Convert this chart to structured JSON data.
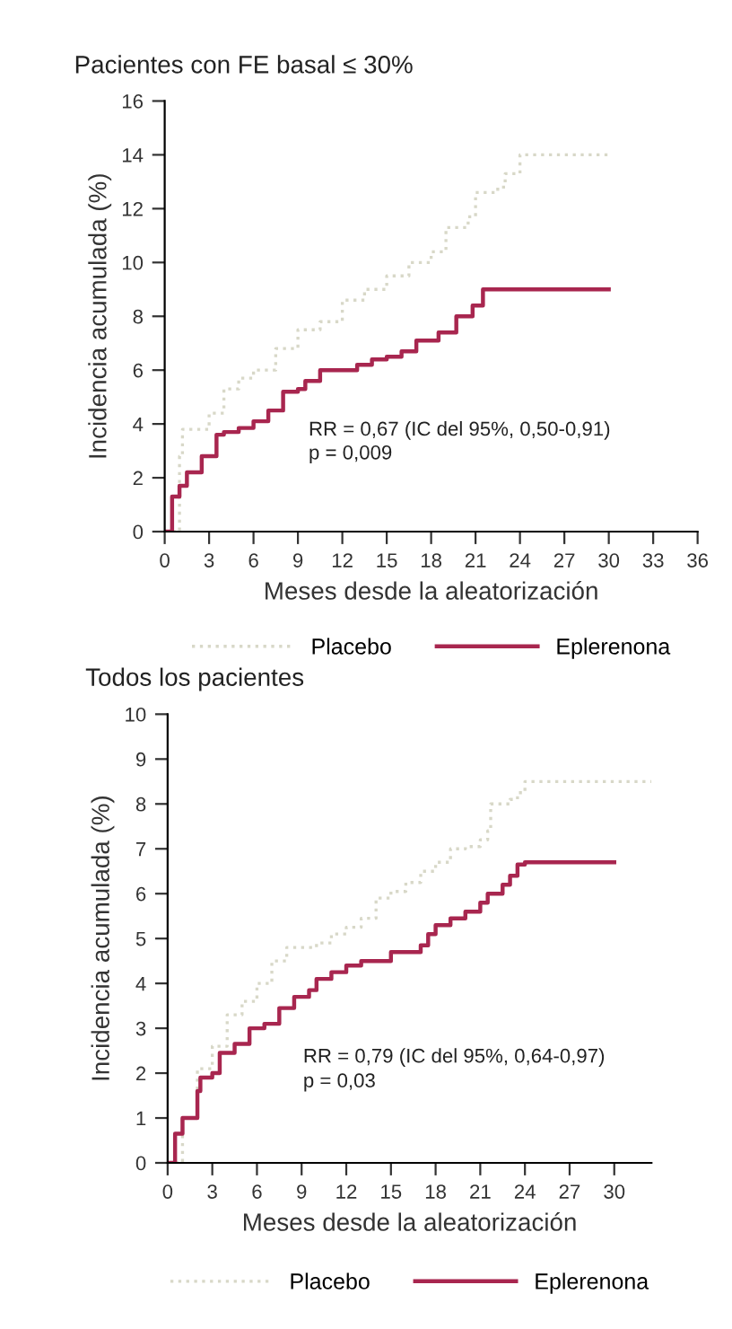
{
  "chart_data": [
    {
      "type": "step",
      "title": "Pacientes con FE basal ≤ 30%",
      "xlabel": "Meses desde la aleatorización",
      "ylabel": "Incidencia acumulada (%)",
      "xlim": [
        0,
        36
      ],
      "xticks": [
        0,
        3,
        6,
        9,
        12,
        15,
        18,
        21,
        24,
        27,
        30,
        33,
        36
      ],
      "ylim": [
        0,
        16
      ],
      "yticks": [
        0,
        2,
        4,
        6,
        8,
        10,
        12,
        14,
        16
      ],
      "grid": false,
      "legend": "bottom",
      "annotations": [
        "RR = 0,67 (IC del 95%, 0,50-0,91)",
        "p = 0,009"
      ],
      "series": [
        {
          "name": "Placebo",
          "color": "#d8d8c8",
          "line_style": "dotted",
          "x": [
            0,
            1,
            1.2,
            3,
            4,
            5,
            6,
            7.5,
            9,
            10.5,
            12,
            13.5,
            15,
            16.5,
            18,
            19,
            20.5,
            21,
            22.5,
            23,
            24,
            30
          ],
          "values": [
            0,
            2.8,
            3.8,
            4.4,
            5.3,
            5.7,
            6.0,
            6.8,
            7.5,
            7.8,
            8.6,
            9.0,
            9.5,
            10.0,
            10.4,
            11.3,
            11.7,
            12.6,
            12.8,
            13.3,
            14.0,
            14.0
          ]
        },
        {
          "name": "Eplerenona",
          "color": "#a8264f",
          "line_style": "solid",
          "x": [
            0,
            0.5,
            1,
            1.5,
            2.5,
            3.5,
            4,
            5,
            6,
            7,
            8,
            9,
            9.5,
            10.5,
            12.5,
            13,
            14,
            15,
            16,
            17,
            18,
            18.5,
            19.5,
            19.7,
            20.5,
            20.8,
            21.5,
            30
          ],
          "values": [
            0,
            1.3,
            1.7,
            2.2,
            2.8,
            3.6,
            3.7,
            3.85,
            4.1,
            4.5,
            5.2,
            5.3,
            5.6,
            6.0,
            6.0,
            6.2,
            6.4,
            6.5,
            6.7,
            7.1,
            7.1,
            7.4,
            7.4,
            8.0,
            8.0,
            8.4,
            9.0,
            9.0
          ]
        }
      ]
    },
    {
      "type": "step",
      "title": "Todos los pacientes",
      "xlabel": "Meses desde la aleatorización",
      "ylabel": "Incidencia acumulada (%)",
      "xlim": [
        0,
        32.5
      ],
      "xticks": [
        0,
        3,
        6,
        9,
        12,
        15,
        18,
        21,
        24,
        27,
        30
      ],
      "ylim": [
        0,
        10
      ],
      "yticks": [
        0,
        1,
        2,
        3,
        4,
        5,
        6,
        7,
        8,
        9,
        10
      ],
      "grid": false,
      "legend": "bottom",
      "annotations": [
        "RR = 0,79 (IC del 95%, 0,64-0,97)",
        "p = 0,03"
      ],
      "series": [
        {
          "name": "Placebo",
          "color": "#d8d8c8",
          "line_style": "dotted",
          "x": [
            0,
            1,
            2,
            3,
            4,
            5,
            6,
            7,
            8,
            9,
            10,
            11,
            12,
            13,
            14,
            15,
            16,
            17,
            18,
            19,
            20,
            21,
            21.5,
            21.7,
            23,
            23.5,
            24,
            32.5
          ],
          "values": [
            0,
            1.0,
            2.1,
            2.6,
            3.3,
            3.6,
            4.0,
            4.5,
            4.8,
            4.8,
            4.9,
            5.1,
            5.25,
            5.45,
            5.9,
            6.05,
            6.25,
            6.5,
            6.7,
            7.0,
            7.05,
            7.2,
            7.4,
            8.0,
            8.1,
            8.25,
            8.5,
            8.5
          ]
        },
        {
          "name": "Eplerenona",
          "color": "#a8264f",
          "line_style": "solid",
          "x": [
            0,
            0.5,
            1,
            2,
            2.2,
            3,
            3.5,
            4.5,
            5.5,
            6.5,
            7.5,
            8.5,
            9.5,
            10,
            11,
            12,
            13,
            14,
            15,
            17,
            17.5,
            18,
            19,
            20,
            21,
            21.5,
            22.5,
            23,
            23.5,
            24,
            30
          ],
          "values": [
            0,
            0.65,
            1.0,
            1.6,
            1.9,
            2.0,
            2.45,
            2.65,
            3.0,
            3.1,
            3.45,
            3.7,
            3.85,
            4.1,
            4.25,
            4.4,
            4.5,
            4.5,
            4.7,
            4.85,
            5.1,
            5.3,
            5.45,
            5.6,
            5.8,
            6.0,
            6.2,
            6.4,
            6.65,
            6.7,
            6.7
          ]
        }
      ]
    }
  ]
}
